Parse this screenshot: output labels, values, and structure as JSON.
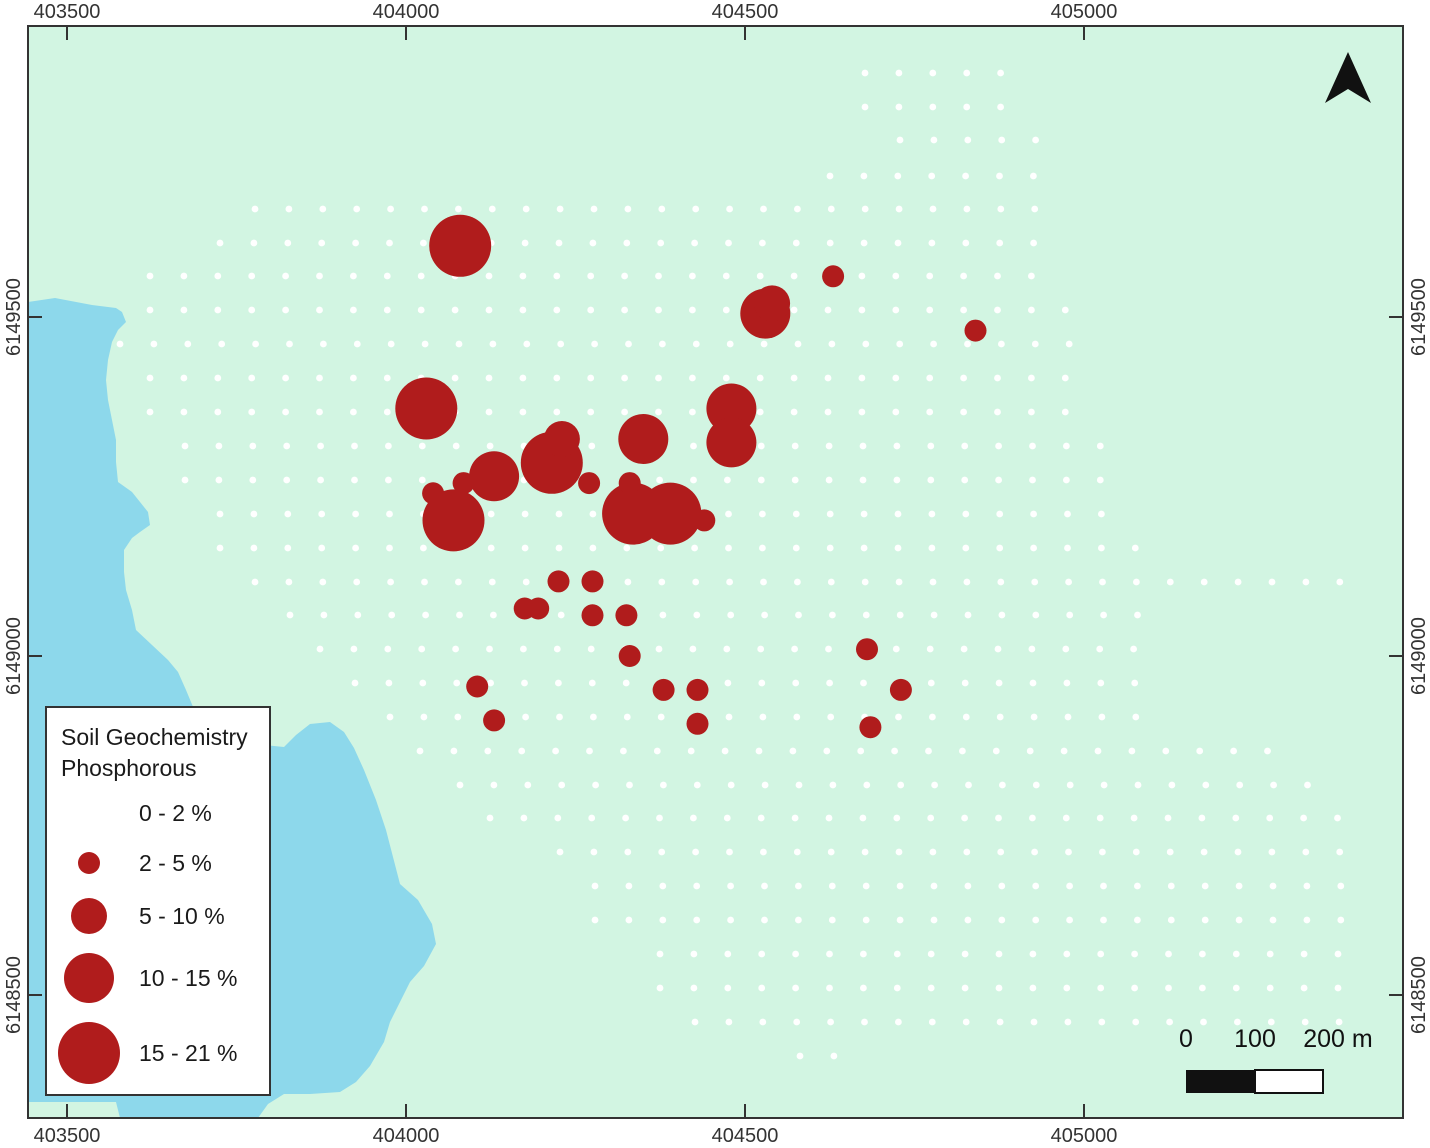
{
  "map": {
    "colors": {
      "land": "#D2F5E2",
      "water": "#8DD8EB",
      "sample": "#FFFFFF",
      "symbol": "#B01C1C",
      "frame": "#333333"
    },
    "x_ticks": [
      "403500",
      "404000",
      "404500",
      "405000"
    ],
    "y_ticks": [
      "6149500",
      "6149000",
      "6148500"
    ],
    "north_arrow": "north-arrow-icon"
  },
  "legend": {
    "title_line1": "Soil Geochemistry",
    "title_line2": "Phosphorous",
    "classes": [
      {
        "label": "0 - 2 %"
      },
      {
        "label": "2 - 5 %"
      },
      {
        "label": "5 - 10 %"
      },
      {
        "label": "10 - 15 %"
      },
      {
        "label": "15 - 21 %"
      }
    ]
  },
  "scale_bar": {
    "labels": [
      "0",
      "100",
      "200 m"
    ]
  },
  "samples": [
    {
      "e": 404080,
      "n": 6149605,
      "cls": 5
    },
    {
      "e": 404030,
      "n": 6149365,
      "cls": 5
    },
    {
      "e": 404070,
      "n": 6149200,
      "cls": 5
    },
    {
      "e": 404335,
      "n": 6149210,
      "cls": 5
    },
    {
      "e": 404390,
      "n": 6149210,
      "cls": 5
    },
    {
      "e": 404215,
      "n": 6149285,
      "cls": 5
    },
    {
      "e": 404530,
      "n": 6149505,
      "cls": 4
    },
    {
      "e": 404480,
      "n": 6149365,
      "cls": 4
    },
    {
      "e": 404480,
      "n": 6149315,
      "cls": 4
    },
    {
      "e": 404130,
      "n": 6149265,
      "cls": 4
    },
    {
      "e": 404350,
      "n": 6149320,
      "cls": 4
    },
    {
      "e": 404540,
      "n": 6149520,
      "cls": 3
    },
    {
      "e": 404230,
      "n": 6149320,
      "cls": 3
    },
    {
      "e": 404630,
      "n": 6149560,
      "cls": 2
    },
    {
      "e": 404840,
      "n": 6149480,
      "cls": 2
    },
    {
      "e": 404085,
      "n": 6149255,
      "cls": 2
    },
    {
      "e": 404040,
      "n": 6149240,
      "cls": 2
    },
    {
      "e": 404270,
      "n": 6149255,
      "cls": 2
    },
    {
      "e": 404330,
      "n": 6149255,
      "cls": 2
    },
    {
      "e": 404440,
      "n": 6149200,
      "cls": 2
    },
    {
      "e": 404225,
      "n": 6149110,
      "cls": 2
    },
    {
      "e": 404275,
      "n": 6149110,
      "cls": 2
    },
    {
      "e": 404175,
      "n": 6149070,
      "cls": 2
    },
    {
      "e": 404195,
      "n": 6149070,
      "cls": 2
    },
    {
      "e": 404275,
      "n": 6149060,
      "cls": 2
    },
    {
      "e": 404325,
      "n": 6149060,
      "cls": 2
    },
    {
      "e": 404330,
      "n": 6149000,
      "cls": 2
    },
    {
      "e": 404105,
      "n": 6148955,
      "cls": 2
    },
    {
      "e": 404380,
      "n": 6148950,
      "cls": 2
    },
    {
      "e": 404430,
      "n": 6148950,
      "cls": 2
    },
    {
      "e": 404130,
      "n": 6148905,
      "cls": 2
    },
    {
      "e": 404430,
      "n": 6148900,
      "cls": 2
    },
    {
      "e": 404680,
      "n": 6149010,
      "cls": 2
    },
    {
      "e": 404730,
      "n": 6148950,
      "cls": 2
    },
    {
      "e": 404685,
      "n": 6148895,
      "cls": 2
    }
  ]
}
